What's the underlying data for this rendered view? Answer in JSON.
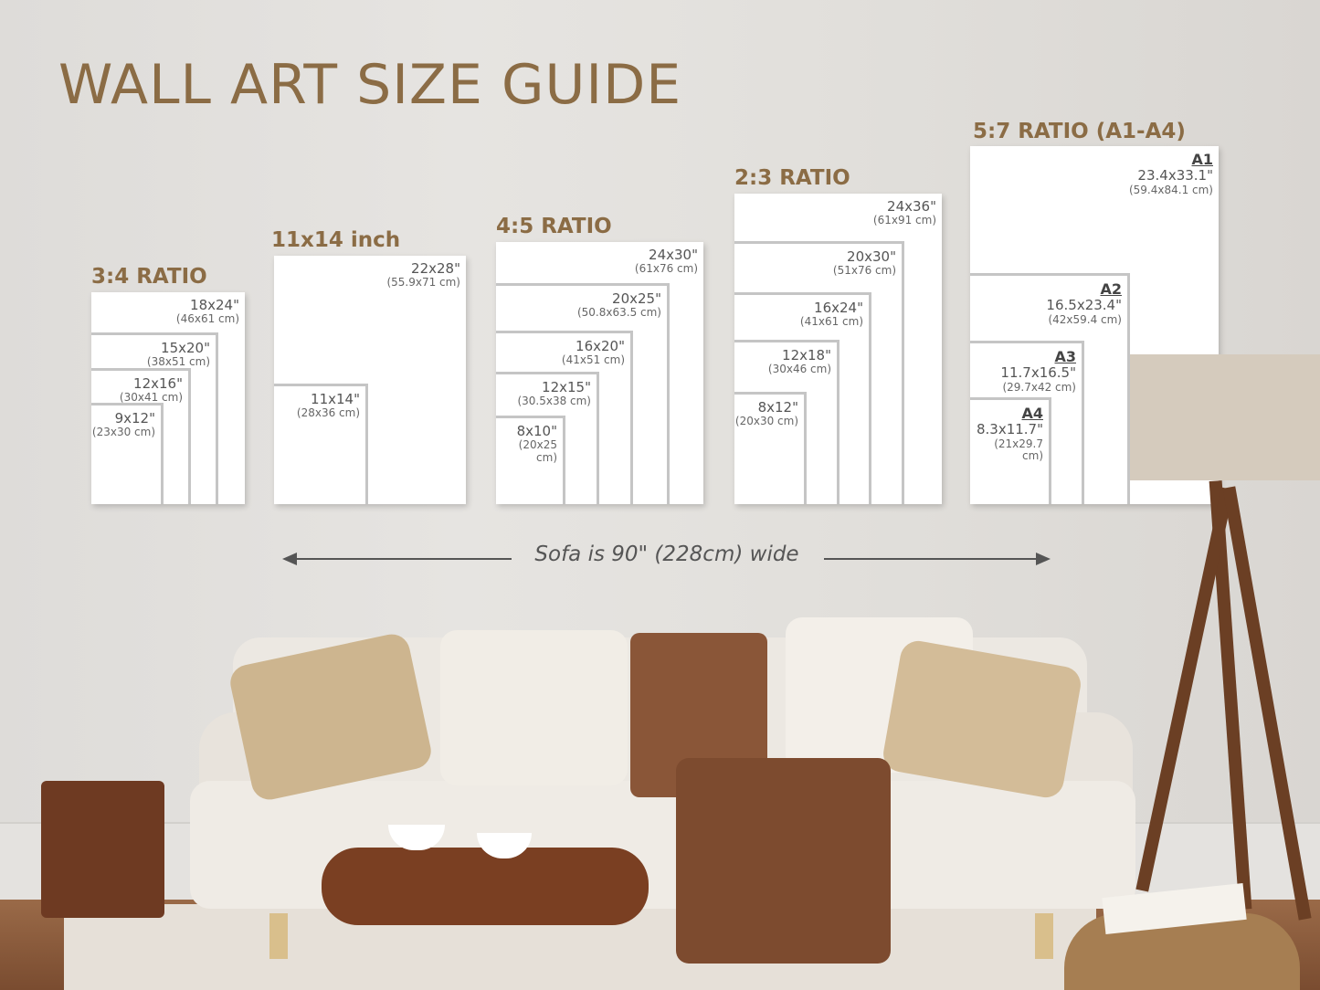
{
  "title": "WALL ART SIZE GUIDE",
  "accent_color": "#8b6c45",
  "groups": [
    {
      "heading": "3:4 RATIO",
      "sizes": [
        {
          "in": "18x24\"",
          "cm": "(46x61 cm)"
        },
        {
          "in": "15x20\"",
          "cm": "(38x51 cm)"
        },
        {
          "in": "12x16\"",
          "cm": "(30x41 cm)"
        },
        {
          "in": "9x12\"",
          "cm": "(23x30 cm)"
        }
      ]
    },
    {
      "heading": "11x14 inch",
      "sizes": [
        {
          "in": "22x28\"",
          "cm": "(55.9x71 cm)"
        },
        {
          "in": "11x14\"",
          "cm": "(28x36 cm)"
        }
      ]
    },
    {
      "heading": "4:5 RATIO",
      "sizes": [
        {
          "in": "24x30\"",
          "cm": "(61x76 cm)"
        },
        {
          "in": "20x25\"",
          "cm": "(50.8x63.5 cm)"
        },
        {
          "in": "16x20\"",
          "cm": "(41x51 cm)"
        },
        {
          "in": "12x15\"",
          "cm": "(30.5x38 cm)"
        },
        {
          "in": "8x10\"",
          "cm": "(20x25 cm)"
        }
      ]
    },
    {
      "heading": "2:3 RATIO",
      "sizes": [
        {
          "in": "24x36\"",
          "cm": "(61x91 cm)"
        },
        {
          "in": "20x30\"",
          "cm": "(51x76 cm)"
        },
        {
          "in": "16x24\"",
          "cm": "(41x61 cm)"
        },
        {
          "in": "12x18\"",
          "cm": "(30x46 cm)"
        },
        {
          "in": "8x12\"",
          "cm": "(20x30 cm)"
        }
      ]
    },
    {
      "heading": "5:7 RATIO (A1-A4)",
      "sizes": [
        {
          "a": "A1",
          "in": "23.4x33.1\"",
          "cm": "(59.4x84.1 cm)"
        },
        {
          "a": "A2",
          "in": "16.5x23.4\"",
          "cm": "(42x59.4 cm)"
        },
        {
          "a": "A3",
          "in": "11.7x16.5\"",
          "cm": "(29.7x42 cm)"
        },
        {
          "a": "A4",
          "in": "8.3x11.7\"",
          "cm": "(21x29.7 cm)"
        }
      ]
    }
  ],
  "sofa_note": "Sofa is 90\" (228cm) wide"
}
